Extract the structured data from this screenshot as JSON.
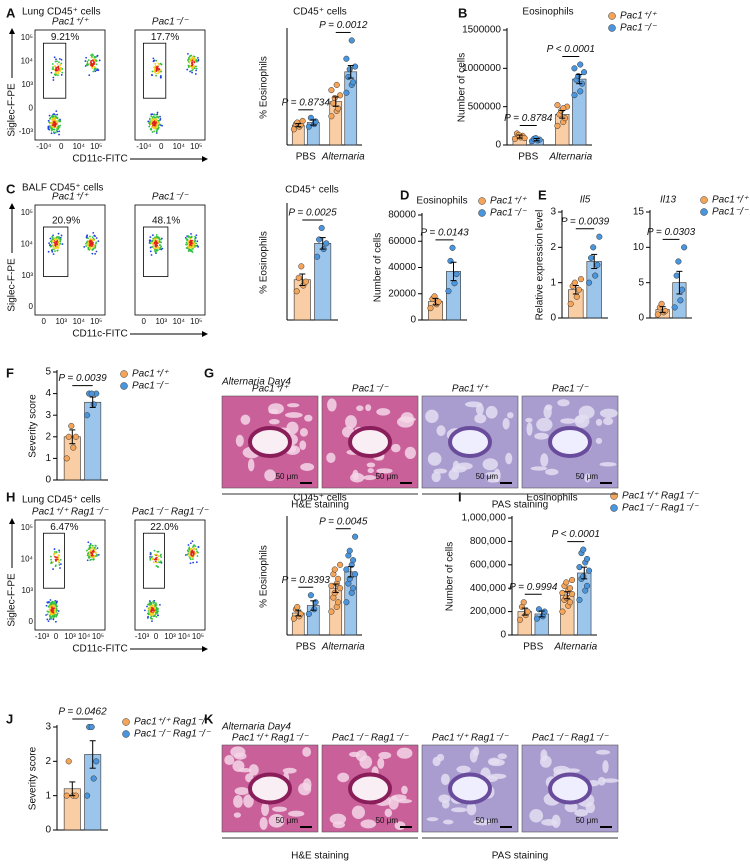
{
  "panel_letters": [
    "A",
    "B",
    "C",
    "D",
    "E",
    "F",
    "G",
    "H",
    "I",
    "J",
    "K"
  ],
  "chart_data": [
    {
      "type": "bar",
      "title": "CD45⁺ cells",
      "ylabel": "% Eosinophils",
      "categories": [
        "PBS",
        "Alternaria"
      ],
      "ylim": [
        0,
        22
      ],
      "legend": false,
      "pvalues": [
        "P = 0.8734",
        "P = 0.0012"
      ],
      "series": [
        {
          "name": "Pac1⁺/⁺",
          "color": "#f5a55a",
          "values": [
            3.8,
            8.3
          ],
          "errors": [
            0.3,
            0.9
          ],
          "points": [
            [
              3.0,
              3.5,
              3.8,
              4.0,
              4.3,
              4.6
            ],
            [
              5.5,
              6.5,
              7.0,
              8.0,
              9.0,
              9.5,
              10.5,
              11.5
            ]
          ]
        },
        {
          "name": "Pac1⁻/⁻",
          "color": "#4a95dc",
          "values": [
            4.3,
            14.0
          ],
          "errors": [
            0.5,
            1.2
          ],
          "points": [
            [
              3.5,
              4.0,
              4.5,
              5.2
            ],
            [
              10.0,
              11.5,
              12.0,
              13.0,
              14.5,
              15.0,
              16.5,
              20.0
            ]
          ]
        }
      ]
    },
    {
      "type": "bar",
      "title": "Eosinophils",
      "ylabel": "Number of cells",
      "categories": [
        "PBS",
        "Alternaria"
      ],
      "ylim": [
        0,
        1500000
      ],
      "yticks": [
        0,
        500000,
        1000000,
        1500000
      ],
      "legend": true,
      "pvalues": [
        "P = 0.8784",
        "P < 0.0001"
      ],
      "series": [
        {
          "name": "Pac1⁺/⁺",
          "color": "#f5a55a",
          "values": [
            110000,
            400000
          ],
          "errors": [
            20000,
            50000
          ],
          "points": [
            [
              80000,
              100000,
              120000,
              150000,
              130000,
              90000
            ],
            [
              250000,
              300000,
              350000,
              400000,
              450000,
              500000,
              520000,
              480000
            ]
          ]
        },
        {
          "name": "Pac1⁻/⁻",
          "color": "#4a95dc",
          "values": [
            70000,
            860000
          ],
          "errors": [
            15000,
            60000
          ],
          "points": [
            [
              50000,
              60000,
              70000,
              80000,
              90000
            ],
            [
              650000,
              700000,
              800000,
              850000,
              900000,
              950000,
              1000000,
              1050000
            ]
          ]
        }
      ]
    },
    {
      "type": "bar",
      "title": "CD45⁺ cells",
      "ylabel": "% Eosinophils",
      "categories": [
        null
      ],
      "ylim": [
        0,
        60
      ],
      "legend": false,
      "pvalues": [
        "P = 0.0025"
      ],
      "series": [
        {
          "name": "Pac1⁺/⁺",
          "color": "#f5a55a",
          "values": [
            21
          ],
          "errors": [
            3
          ],
          "points": [
            [
              15,
              18,
              20,
              22,
              28
            ]
          ]
        },
        {
          "name": "Pac1⁻/⁻",
          "color": "#4a95dc",
          "values": [
            40
          ],
          "errors": [
            3
          ],
          "points": [
            [
              33,
              37,
              40,
              42,
              48
            ]
          ]
        }
      ]
    },
    {
      "type": "bar",
      "title": "Eosinophils",
      "ylabel": "Number of cells",
      "categories": [
        null
      ],
      "ylim": [
        0,
        80000
      ],
      "yticks": [
        0,
        20000,
        40000,
        60000,
        80000
      ],
      "legend": true,
      "pvalues": [
        "P = 0.0143"
      ],
      "series": [
        {
          "name": "Pac1⁺/⁺",
          "color": "#f5a55a",
          "values": [
            14000
          ],
          "errors": [
            2500
          ],
          "points": [
            [
              9000,
              12000,
              14000,
              16000,
              18000
            ]
          ]
        },
        {
          "name": "Pac1⁻/⁻",
          "color": "#4a95dc",
          "values": [
            37000
          ],
          "errors": [
            7000
          ],
          "points": [
            [
              22000,
              28000,
              35000,
              45000,
              55000
            ]
          ]
        }
      ]
    },
    {
      "type": "bar",
      "title": "Il5",
      "ylabel": "Relative expression level",
      "categories": [
        null
      ],
      "ylim": [
        0,
        3
      ],
      "yticks": [
        0,
        1,
        2,
        3
      ],
      "legend": false,
      "pvalues": [
        "P = 0.0039"
      ],
      "series": [
        {
          "name": "Pac1⁺/⁺",
          "color": "#f5a55a",
          "values": [
            0.8
          ],
          "errors": [
            0.12
          ],
          "points": [
            [
              0.4,
              0.6,
              0.8,
              0.9,
              1.0,
              1.1
            ]
          ]
        },
        {
          "name": "Pac1⁻/⁻",
          "color": "#4a95dc",
          "values": [
            1.6
          ],
          "errors": [
            0.2
          ],
          "points": [
            [
              1.0,
              1.2,
              1.5,
              1.7,
              2.0,
              2.3
            ]
          ]
        }
      ]
    },
    {
      "type": "bar",
      "title": "Il13",
      "categories": [
        null
      ],
      "ylim": [
        0,
        15
      ],
      "yticks": [
        0,
        5,
        10,
        15
      ],
      "legend": true,
      "pvalues": [
        "P = 0.0303"
      ],
      "series": [
        {
          "name": "Pac1⁺/⁺",
          "color": "#f5a55a",
          "values": [
            1.2
          ],
          "errors": [
            0.4
          ],
          "points": [
            [
              0.5,
              0.8,
              1.0,
              1.5,
              2.0
            ]
          ]
        },
        {
          "name": "Pac1⁻/⁻",
          "color": "#4a95dc",
          "values": [
            5.0
          ],
          "errors": [
            1.6
          ],
          "points": [
            [
              1.5,
              2.5,
              4.0,
              6.0,
              8.0,
              10.0
            ]
          ]
        }
      ]
    },
    {
      "type": "bar",
      "ylabel": "Severity score",
      "categories": [
        null
      ],
      "ylim": [
        0,
        5
      ],
      "yticks": [
        0,
        1,
        2,
        3,
        4,
        5
      ],
      "legend": true,
      "pvalues": [
        "P = 0.0039"
      ],
      "series": [
        {
          "name": "Pac1⁺/⁺",
          "color": "#f5a55a",
          "values": [
            2.0
          ],
          "errors": [
            0.32
          ],
          "points": [
            [
              1,
              1.5,
              2,
              2,
              2.5
            ]
          ]
        },
        {
          "name": "Pac1⁻/⁻",
          "color": "#4a95dc",
          "values": [
            3.6
          ],
          "errors": [
            0.24
          ],
          "points": [
            [
              3,
              3.5,
              4,
              4,
              4
            ]
          ]
        }
      ]
    },
    {
      "type": "bar",
      "title": "CD45⁺ cells",
      "ylabel": "% Eosinophils",
      "categories": [
        "PBS",
        "Alternaria"
      ],
      "ylim": [
        0,
        25
      ],
      "legend": false,
      "pvalues": [
        "P = 0.8393",
        "P = 0.0045"
      ],
      "series": [
        {
          "name": "Pac1⁺/⁺ Rag1⁻/⁻",
          "color": "#f5a55a",
          "values": [
            4.7,
            10.0
          ],
          "errors": [
            0.6,
            0.9
          ],
          "points": [
            [
              3.5,
              4.0,
              4.5,
              5.5,
              6.0
            ],
            [
              5,
              6,
              7,
              8,
              9,
              10,
              10.5,
              11,
              12,
              13,
              14,
              15
            ]
          ]
        },
        {
          "name": "Pac1⁻/⁻ Rag1⁻/⁻",
          "color": "#4a95dc",
          "values": [
            6.3,
            13.5
          ],
          "errors": [
            1.0,
            1.1
          ],
          "points": [
            [
              4.5,
              5.5,
              7.0,
              8.5
            ],
            [
              7,
              9,
              10,
              11,
              12,
              13,
              14,
              15,
              16,
              17,
              18,
              21
            ]
          ]
        }
      ]
    },
    {
      "type": "bar",
      "title": "Eosinophils",
      "ylabel": "Number of cells",
      "categories": [
        "PBS",
        "Alternaria"
      ],
      "ylim": [
        0,
        1000000
      ],
      "yticks": [
        0,
        {
          "value": 200000,
          "label": "200,000"
        },
        {
          "value": 400000,
          "label": "400,000"
        },
        {
          "value": 600000,
          "label": "600,000"
        },
        {
          "value": 800000,
          "label": "800,000"
        },
        {
          "value": 1000000,
          "label": "1,000,000"
        }
      ],
      "legend": true,
      "pvalues": [
        "P = 0.9994",
        "P < 0.0001"
      ],
      "series": [
        {
          "name": "Pac1⁺/⁺ Rag1⁻/⁻",
          "color": "#f5a55a",
          "values": [
            200000,
            340000
          ],
          "errors": [
            30000,
            30000
          ],
          "points": [
            [
              130000,
              170000,
              200000,
              240000,
              280000
            ],
            [
              200000,
              250000,
              280000,
              300000,
              320000,
              350000,
              360000,
              380000,
              400000,
              420000,
              450000,
              470000
            ]
          ]
        },
        {
          "name": "Pac1⁻/⁻ Rag1⁻/⁻",
          "color": "#4a95dc",
          "values": [
            180000,
            530000
          ],
          "errors": [
            25000,
            50000
          ],
          "points": [
            [
              140000,
              160000,
              200000,
              220000
            ],
            [
              300000,
              380000,
              420000,
              480000,
              500000,
              550000,
              580000,
              620000,
              650000,
              700000,
              730000
            ]
          ]
        }
      ]
    },
    {
      "type": "bar",
      "ylabel": "Severity score",
      "categories": [
        null
      ],
      "ylim": [
        0,
        3
      ],
      "yticks": [
        0,
        1,
        2,
        3
      ],
      "legend": true,
      "pvalues": [
        "P = 0.0462"
      ],
      "series": [
        {
          "name": "Pac1⁺/⁺ Rag1⁻/⁻",
          "color": "#f5a55a",
          "values": [
            1.2
          ],
          "errors": [
            0.2
          ],
          "points": [
            [
              1,
              1,
              1,
              2
            ]
          ]
        },
        {
          "name": "Pac1⁻/⁻ Rag1⁻/⁻",
          "color": "#4a95dc",
          "values": [
            2.2
          ],
          "errors": [
            0.4
          ],
          "points": [
            [
              1,
              1.5,
              2,
              3,
              3
            ]
          ]
        }
      ]
    }
  ],
  "flow": [
    {
      "header": "Lung CD45⁺ cells",
      "ylabel": "Siglec-F-PE",
      "xlabel": "CD11c-FITC",
      "yticks": [
        "10⁵",
        "10⁴",
        "10³",
        "0",
        "-10³"
      ],
      "xticks": [
        "-10⁴",
        "0",
        "10⁴",
        "10⁵"
      ],
      "plots": [
        {
          "genotype": "Pac1⁺/⁺",
          "gate": "9.21%"
        },
        {
          "genotype": "Pac1⁻/⁻",
          "gate": "17.7%"
        }
      ]
    },
    {
      "header": "BALF CD45⁺ cells",
      "ylabel": "Siglec-F-PE",
      "xlabel": "CD11c-FITC",
      "yticks": [
        "10⁵",
        "10⁴",
        "10³",
        "0"
      ],
      "xticks": [
        "0",
        "10³",
        "10⁴",
        "10⁵"
      ],
      "plots": [
        {
          "genotype": "Pac1⁺/⁺",
          "gate": "20.9%"
        },
        {
          "genotype": "Pac1⁻/⁻",
          "gate": "48.1%"
        }
      ]
    },
    {
      "header": "Lung CD45⁺ cells",
      "ylabel": "Siglec-F-PE",
      "xlabel": "CD11c-FITC",
      "yticks": [
        "10⁵",
        "10⁴",
        "10³",
        "0"
      ],
      "xticks": [
        "-10³",
        "0",
        "10³",
        "10⁴",
        "10⁵"
      ],
      "plots": [
        {
          "genotype": "Pac1⁺/⁺ Rag1⁻/⁻",
          "gate": "6.47%"
        },
        {
          "genotype": "Pac1⁻/⁻ Rag1⁻/⁻",
          "gate": "22.0%"
        }
      ]
    }
  ],
  "histology": [
    {
      "header": "Alternaria Day4",
      "images": [
        "Pac1⁺/⁺",
        "Pac1⁻/⁻",
        "Pac1⁺/⁺",
        "Pac1⁻/⁻"
      ],
      "scale": "50 μm",
      "stains": [
        "H&E staining",
        "PAS staining"
      ]
    },
    {
      "header": "Alternaria Day4",
      "images": [
        "Pac1⁺/⁺ Rag1⁻/⁻",
        "Pac1⁻/⁻ Rag1⁻/⁻",
        "Pac1⁺/⁺ Rag1⁻/⁻",
        "Pac1⁻/⁻ Rag1⁻/⁻"
      ],
      "scale": "50 μm",
      "stains": [
        "H&E staining",
        "PAS staining"
      ]
    }
  ]
}
